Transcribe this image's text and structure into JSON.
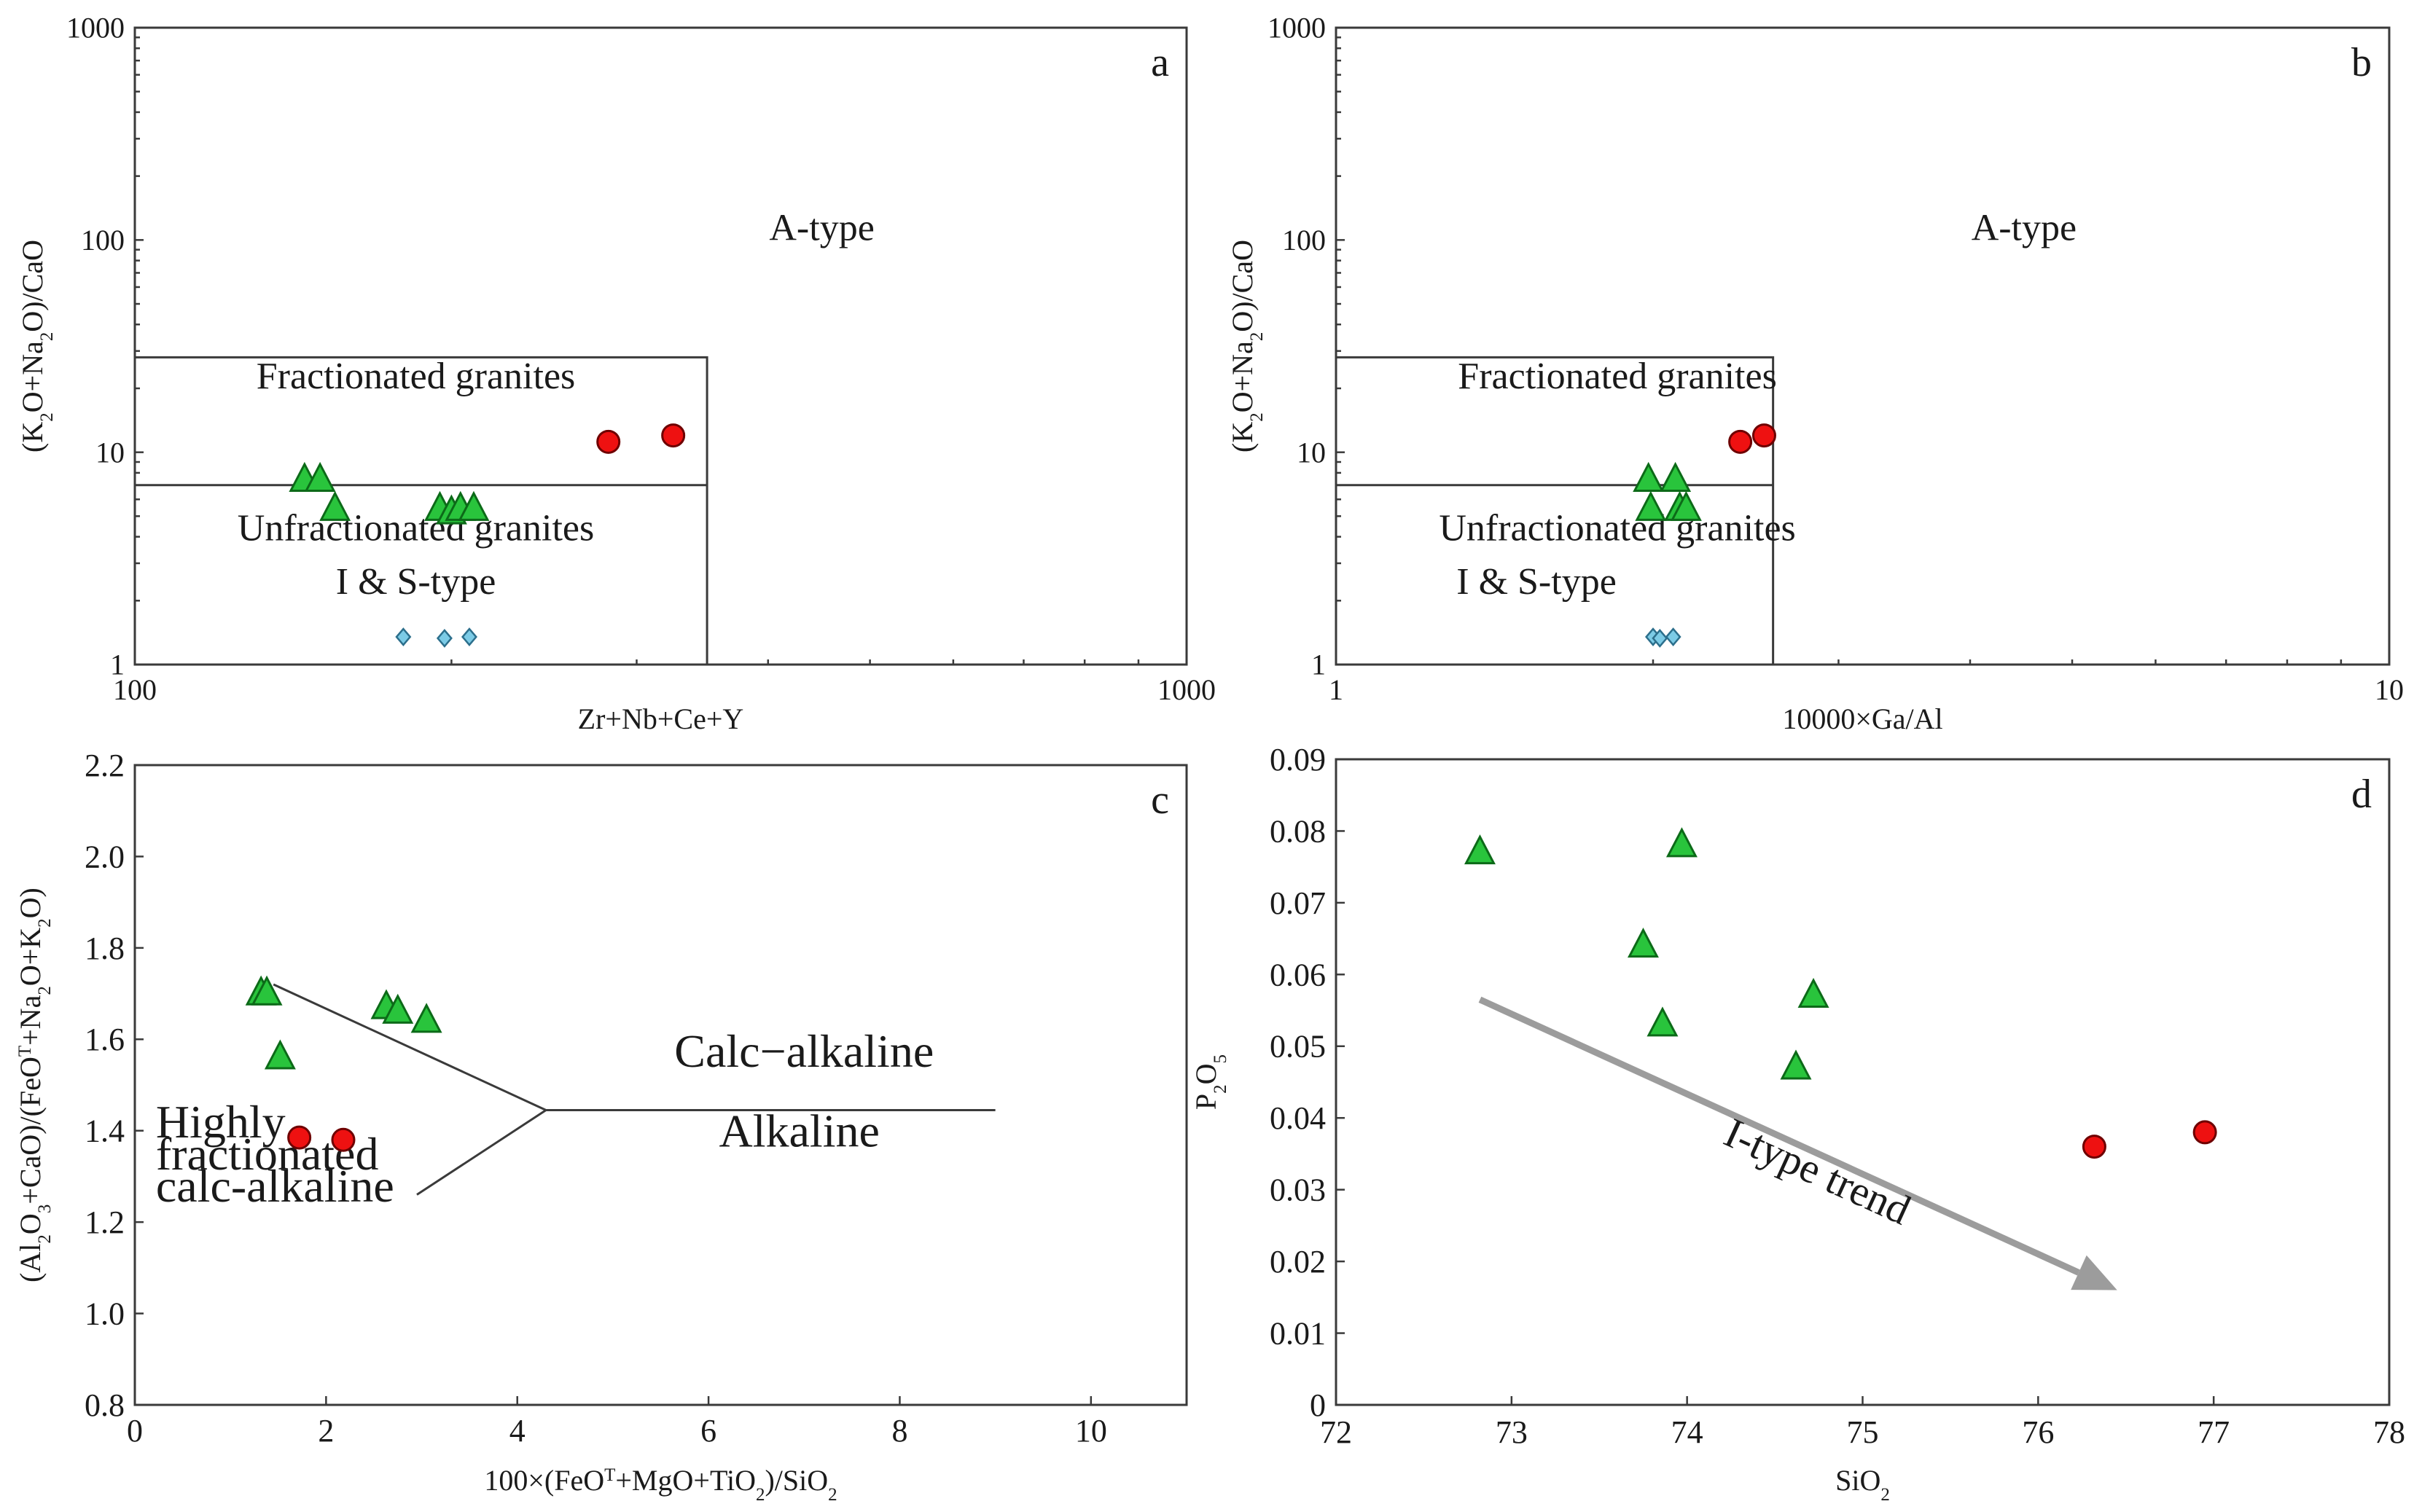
{
  "colors": {
    "triangle_fill": "#29c43c",
    "triangle_stroke": "#0c6a18",
    "circle_fill": "#ee1111",
    "circle_stroke": "#6e0000",
    "diamond_fill": "#7ccbe6",
    "diamond_stroke": "#2c6f8c",
    "arrow": "#9c9c9c",
    "text": "#1a1a1a"
  },
  "chart_data": [
    {
      "id": "a",
      "panel_label": "a",
      "type": "scatter",
      "xscale": "log",
      "yscale": "log",
      "xlim": [
        100,
        1000
      ],
      "ylim": [
        1,
        1000
      ],
      "xticks": [
        100,
        1000
      ],
      "xtick_labels": [
        "100",
        "1000"
      ],
      "yticks": [
        1,
        10,
        100,
        1000
      ],
      "ytick_labels": [
        "1",
        "10",
        "100",
        "1000"
      ],
      "xlabel": "Zr+Nb+Ce+Y",
      "ylabel": [
        "(K",
        "2",
        "O+Na",
        "2",
        "O)/CaO"
      ],
      "fields": [
        {
          "name": "fractionated-unfractionated-box",
          "points": [
            [
              100,
              28
            ],
            [
              350,
              28
            ],
            [
              350,
              1
            ]
          ]
        },
        {
          "name": "fractionated-divider",
          "points": [
            [
              100,
              7
            ],
            [
              350,
              7
            ]
          ]
        }
      ],
      "annotations": [
        {
          "text": "A-type",
          "x": 450,
          "y": 100
        },
        {
          "text": "Fractionated granites",
          "x": 185,
          "y": 20
        },
        {
          "text": "Unfractionated granites",
          "x": 185,
          "y": 3.85
        },
        {
          "text": "I & S-type",
          "x": 185,
          "y": 2.15
        }
      ],
      "series": [
        {
          "name": "green-triangle-samples",
          "marker": "triangle",
          "x": [
            145,
            150,
            155,
            195,
            200,
            204,
            210
          ],
          "y": [
            7.4,
            7.4,
            5.4,
            5.4,
            5.2,
            5.4,
            5.4
          ]
        },
        {
          "name": "red-circle-samples",
          "marker": "circle",
          "x": [
            282,
            325
          ],
          "y": [
            11.2,
            12.0
          ]
        },
        {
          "name": "blue-diamond-samples",
          "marker": "diamond",
          "x": [
            180,
            197,
            208
          ],
          "y": [
            1.35,
            1.33,
            1.35
          ]
        }
      ]
    },
    {
      "id": "b",
      "panel_label": "b",
      "type": "scatter",
      "xscale": "log",
      "yscale": "log",
      "xlim": [
        1,
        10
      ],
      "ylim": [
        1,
        1000
      ],
      "xticks": [
        1,
        10
      ],
      "xtick_labels": [
        "1",
        "10"
      ],
      "yticks": [
        1,
        10,
        100,
        1000
      ],
      "ytick_labels": [
        "1",
        "10",
        "100",
        "1000"
      ],
      "xlabel": "10000×Ga/Al",
      "ylabel": [
        "(K",
        "2",
        "O+Na",
        "2",
        "O)/CaO"
      ],
      "fields": [
        {
          "name": "fractionated-unfractionated-box",
          "points": [
            [
              1,
              28
            ],
            [
              2.6,
              28
            ],
            [
              2.6,
              1
            ]
          ]
        },
        {
          "name": "fractionated-divider",
          "points": [
            [
              1,
              7
            ],
            [
              2.6,
              7
            ]
          ]
        }
      ],
      "annotations": [
        {
          "text": "A-type",
          "x": 4.5,
          "y": 100
        },
        {
          "text": "Fractionated granites",
          "x": 1.85,
          "y": 20
        },
        {
          "text": "Unfractionated granites",
          "x": 1.85,
          "y": 3.85
        },
        {
          "text": "I & S-type",
          "x": 1.55,
          "y": 2.15
        }
      ],
      "series": [
        {
          "name": "green-triangle-samples",
          "marker": "triangle",
          "x": [
            1.98,
            1.99,
            2.1,
            2.12,
            2.15
          ],
          "y": [
            7.4,
            5.4,
            7.4,
            5.4,
            5.4
          ]
        },
        {
          "name": "red-circle-samples",
          "marker": "circle",
          "x": [
            2.42,
            2.55
          ],
          "y": [
            11.2,
            12.0
          ]
        },
        {
          "name": "blue-diamond-samples",
          "marker": "diamond",
          "x": [
            2.0,
            2.03,
            2.09
          ],
          "y": [
            1.35,
            1.33,
            1.35
          ]
        }
      ]
    },
    {
      "id": "c",
      "panel_label": "c",
      "type": "scatter",
      "xscale": "linear",
      "yscale": "linear",
      "xlim": [
        0,
        11
      ],
      "ylim": [
        0.8,
        2.2
      ],
      "xticks": [
        0,
        2,
        4,
        6,
        8,
        10
      ],
      "xtick_labels": [
        "0",
        "2",
        "4",
        "6",
        "8",
        "10"
      ],
      "yticks": [
        0.8,
        1.0,
        1.2,
        1.4,
        1.6,
        1.8,
        2.0,
        2.2
      ],
      "ytick_labels": [
        "0.8",
        "1.0",
        "1.2",
        "1.4",
        "1.6",
        "1.8",
        "2.0",
        "2.2"
      ],
      "xlabel": [
        "100×(FeO",
        "T",
        "+MgO+TiO",
        "2",
        ")/SiO",
        "2"
      ],
      "ylabel": [
        "(Al",
        "2",
        "O",
        "3",
        "+CaO)/(FeO",
        "T",
        "+Na",
        "2",
        "O+K",
        "2",
        "O)"
      ],
      "fields": [
        {
          "name": "upper-boundary",
          "points": [
            [
              1.45,
              1.72
            ],
            [
              4.3,
              1.445
            ]
          ]
        },
        {
          "name": "lower-boundary",
          "points": [
            [
              2.95,
              1.26
            ],
            [
              4.3,
              1.445
            ]
          ]
        },
        {
          "name": "calc-alkaline-alkaline-boundary",
          "points": [
            [
              4.3,
              1.445
            ],
            [
              9.0,
              1.445
            ]
          ]
        }
      ],
      "annotations": [
        {
          "text": "Calc−alkaline",
          "x": 7.0,
          "y": 1.54
        },
        {
          "text": "Alkaline",
          "x": 6.95,
          "y": 1.365
        },
        {
          "text": "Highly",
          "x": 0.22,
          "y": 1.385,
          "anchor": "start"
        },
        {
          "text": "fractionated",
          "x": 0.22,
          "y": 1.315,
          "anchor": "start"
        },
        {
          "text": "calc-alkaline",
          "x": 0.22,
          "y": 1.245,
          "anchor": "start"
        }
      ],
      "series": [
        {
          "name": "green-triangle-samples",
          "marker": "triangle",
          "x": [
            1.32,
            1.38,
            1.52,
            2.63,
            2.75,
            3.05
          ],
          "y": [
            1.7,
            1.7,
            1.56,
            1.67,
            1.66,
            1.64
          ]
        },
        {
          "name": "red-circle-samples",
          "marker": "circle",
          "x": [
            1.72,
            2.18
          ],
          "y": [
            1.385,
            1.38
          ]
        }
      ]
    },
    {
      "id": "d",
      "panel_label": "d",
      "type": "scatter",
      "xscale": "linear",
      "yscale": "linear",
      "xlim": [
        72,
        78
      ],
      "ylim": [
        0,
        0.09
      ],
      "xticks": [
        72,
        73,
        74,
        75,
        76,
        77,
        78
      ],
      "xtick_labels": [
        "72",
        "73",
        "74",
        "75",
        "76",
        "77",
        "78"
      ],
      "yticks": [
        0,
        0.01,
        0.02,
        0.03,
        0.04,
        0.05,
        0.06,
        0.07,
        0.08,
        0.09
      ],
      "ytick_labels": [
        "0",
        "0.01",
        "0.02",
        "0.03",
        "0.04",
        "0.05",
        "0.06",
        "0.07",
        "0.08",
        "0.09"
      ],
      "xlabel": [
        "SiO",
        "2"
      ],
      "ylabel": [
        "P",
        "2",
        "O",
        "5"
      ],
      "fields": [],
      "trend_arrow": {
        "label": "I-type trend",
        "from": [
          72.82,
          0.0565
        ],
        "to": [
          76.45,
          0.016
        ]
      },
      "series": [
        {
          "name": "green-triangle-samples",
          "marker": "triangle",
          "x": [
            72.82,
            73.75,
            73.86,
            73.97,
            74.62,
            74.72
          ],
          "y": [
            0.077,
            0.064,
            0.053,
            0.078,
            0.047,
            0.057
          ]
        },
        {
          "name": "red-circle-samples",
          "marker": "circle",
          "x": [
            76.32,
            76.95
          ],
          "y": [
            0.036,
            0.038
          ]
        }
      ]
    }
  ]
}
